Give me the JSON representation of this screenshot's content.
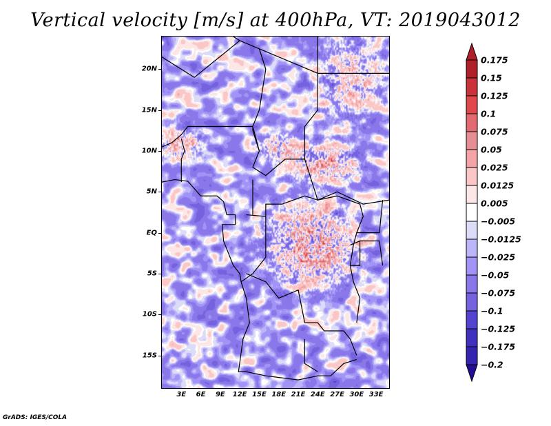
{
  "chart_data": {
    "type": "heatmap",
    "title": "Vertical velocity [m/s] at 400hPa, VT: 2019043012",
    "variable": "Vertical velocity",
    "units": "m/s",
    "level": "400hPa",
    "valid_time": "2019043012",
    "xlabel": "",
    "ylabel": "",
    "x_range_deg_east": [
      0,
      35
    ],
    "y_range_deg_north": [
      -19,
      24
    ],
    "x_ticks": [
      "3E",
      "6E",
      "9E",
      "12E",
      "15E",
      "18E",
      "21E",
      "24E",
      "27E",
      "30E",
      "33E"
    ],
    "x_tick_values": [
      3,
      6,
      9,
      12,
      15,
      18,
      21,
      24,
      27,
      30,
      33
    ],
    "y_ticks": [
      "20N",
      "15N",
      "10N",
      "5N",
      "EQ",
      "5S",
      "10S",
      "15S"
    ],
    "y_tick_values": [
      20,
      15,
      10,
      5,
      0,
      -5,
      -10,
      -15
    ],
    "grid": false,
    "legend": {
      "type": "colorbar",
      "placement": "right",
      "levels": [
        "0.175",
        "0.15",
        "0.125",
        "0.1",
        "0.075",
        "0.05",
        "0.025",
        "0.0125",
        "0.005",
        "-0.005",
        "-0.0125",
        "-0.025",
        "-0.05",
        "-0.075",
        "-0.1",
        "-0.125",
        "-0.175",
        "-0.2"
      ],
      "colors": [
        "#b0202a",
        "#c83238",
        "#e0484c",
        "#e26a70",
        "#e58e94",
        "#f4a4a6",
        "#fac6c6",
        "#fde6e6",
        "#ffffff",
        "#dcdcf8",
        "#bcb6f8",
        "#a294f6",
        "#8a78ea",
        "#7462de",
        "#5442d0",
        "#4030c0",
        "#3424b0",
        "#240c96"
      ],
      "extend": "both"
    },
    "description": "Gridded field over central Africa; red (upward) maxima over Congo basin/East DRC and southern Sudan, blue (downward) widespread over Atlantic and south."
  },
  "footer": "GrADS: IGES/COLA"
}
